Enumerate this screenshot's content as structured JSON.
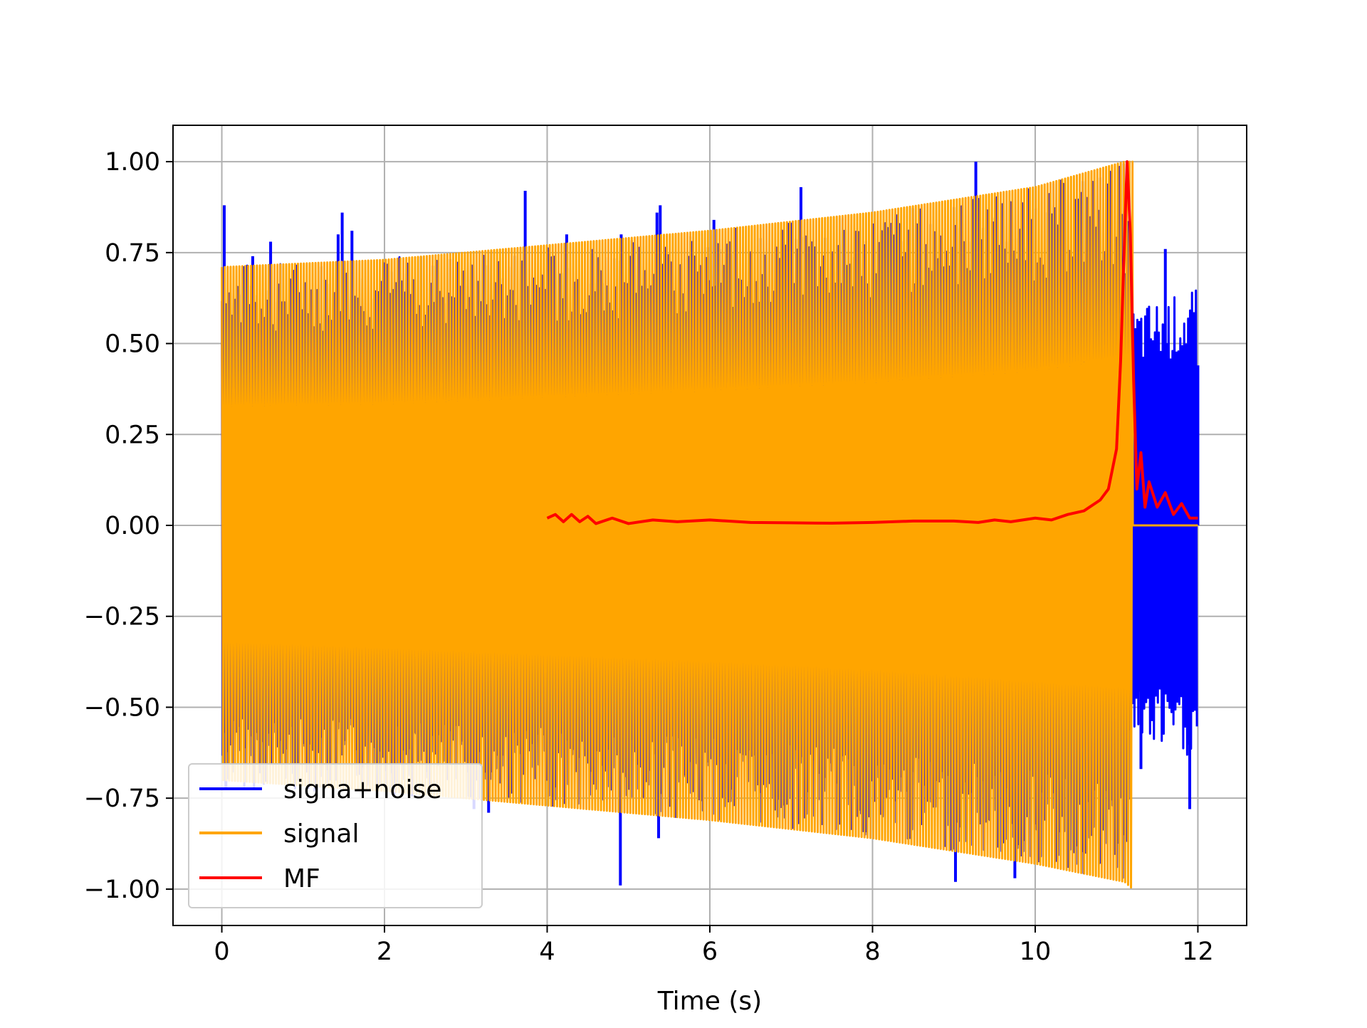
{
  "chart_data": {
    "type": "line",
    "title": "",
    "xlabel": "Time (s)",
    "ylabel": "",
    "xlim": [
      -0.6,
      12.6
    ],
    "ylim": [
      -1.1,
      1.1
    ],
    "grid": true,
    "legend_position": "lower-left",
    "x_ticks": [
      {
        "value": 0,
        "label": "0"
      },
      {
        "value": 2,
        "label": "2"
      },
      {
        "value": 4,
        "label": "4"
      },
      {
        "value": 6,
        "label": "6"
      },
      {
        "value": 8,
        "label": "8"
      },
      {
        "value": 10,
        "label": "10"
      },
      {
        "value": 12,
        "label": "12"
      }
    ],
    "y_ticks": [
      {
        "value": 1.0,
        "label": "1.00"
      },
      {
        "value": 0.75,
        "label": "0.75"
      },
      {
        "value": 0.5,
        "label": "0.50"
      },
      {
        "value": 0.25,
        "label": "0.25"
      },
      {
        "value": 0.0,
        "label": "0.00"
      },
      {
        "value": -0.25,
        "label": "−0.25"
      },
      {
        "value": -0.5,
        "label": "−0.50"
      },
      {
        "value": -0.75,
        "label": "−0.75"
      },
      {
        "value": -1.0,
        "label": "−1.00"
      }
    ],
    "series": [
      {
        "name": "signa+noise",
        "color": "#0000ff",
        "x_range": [
          0,
          12
        ],
        "envelope_upper": [
          [
            0,
            0.72
          ],
          [
            2,
            0.74
          ],
          [
            4,
            0.77
          ],
          [
            6,
            0.81
          ],
          [
            8,
            0.86
          ],
          [
            10,
            0.93
          ],
          [
            11.1,
            1.0
          ],
          [
            11.2,
            0.6
          ],
          [
            12,
            0.65
          ]
        ],
        "spikes": [
          [
            0.03,
            0.88
          ],
          [
            0.05,
            -0.72
          ],
          [
            0.38,
            0.74
          ],
          [
            0.6,
            0.78
          ],
          [
            1.43,
            0.8
          ],
          [
            1.48,
            0.86
          ],
          [
            1.6,
            0.81
          ],
          [
            3.1,
            -0.78
          ],
          [
            3.28,
            -0.79
          ],
          [
            3.73,
            0.92
          ],
          [
            4.24,
            0.8
          ],
          [
            4.9,
            -0.99
          ],
          [
            4.91,
            0.8
          ],
          [
            5.35,
            0.86
          ],
          [
            5.37,
            -0.86
          ],
          [
            5.39,
            0.88
          ],
          [
            6.05,
            0.84
          ],
          [
            7.12,
            0.93
          ],
          [
            9.02,
            -0.98
          ],
          [
            9.27,
            1.0
          ],
          [
            9.3,
            0.9
          ],
          [
            9.75,
            -0.97
          ],
          [
            11.3,
            -0.67
          ],
          [
            11.6,
            0.76
          ],
          [
            11.9,
            -0.78
          ],
          [
            12.0,
            0.44
          ]
        ]
      },
      {
        "name": "signal",
        "color": "#ffa500",
        "x_range": [
          0,
          11.2
        ],
        "envelope_upper": [
          [
            0,
            0.71
          ],
          [
            2,
            0.73
          ],
          [
            4,
            0.77
          ],
          [
            6,
            0.81
          ],
          [
            8,
            0.86
          ],
          [
            10,
            0.93
          ],
          [
            11.1,
            1.0
          ],
          [
            11.2,
            1.0
          ]
        ],
        "envelope_lower": [
          [
            0,
            -0.7
          ],
          [
            2,
            -0.73
          ],
          [
            4,
            -0.77
          ],
          [
            6,
            -0.81
          ],
          [
            8,
            -0.86
          ],
          [
            10,
            -0.93
          ],
          [
            11.1,
            -0.98
          ],
          [
            11.2,
            -1.0
          ]
        ],
        "after_end_value": 0.0
      },
      {
        "name": "MF",
        "color": "#ff0000",
        "points": [
          [
            4.0,
            0.02
          ],
          [
            4.1,
            0.03
          ],
          [
            4.2,
            0.01
          ],
          [
            4.3,
            0.03
          ],
          [
            4.4,
            0.01
          ],
          [
            4.5,
            0.025
          ],
          [
            4.6,
            0.005
          ],
          [
            4.8,
            0.02
          ],
          [
            5.0,
            0.005
          ],
          [
            5.3,
            0.015
          ],
          [
            5.6,
            0.01
          ],
          [
            6.0,
            0.015
          ],
          [
            6.5,
            0.008
          ],
          [
            7.0,
            0.007
          ],
          [
            7.5,
            0.006
          ],
          [
            8.0,
            0.008
          ],
          [
            8.5,
            0.012
          ],
          [
            9.0,
            0.012
          ],
          [
            9.3,
            0.008
          ],
          [
            9.5,
            0.015
          ],
          [
            9.7,
            0.01
          ],
          [
            10.0,
            0.02
          ],
          [
            10.2,
            0.015
          ],
          [
            10.4,
            0.03
          ],
          [
            10.6,
            0.04
          ],
          [
            10.8,
            0.07
          ],
          [
            10.9,
            0.1
          ],
          [
            11.0,
            0.21
          ],
          [
            11.05,
            0.45
          ],
          [
            11.1,
            0.8
          ],
          [
            11.13,
            1.0
          ],
          [
            11.17,
            0.8
          ],
          [
            11.21,
            0.4
          ],
          [
            11.25,
            0.1
          ],
          [
            11.3,
            0.2
          ],
          [
            11.35,
            0.05
          ],
          [
            11.4,
            0.12
          ],
          [
            11.5,
            0.05
          ],
          [
            11.6,
            0.09
          ],
          [
            11.7,
            0.03
          ],
          [
            11.8,
            0.06
          ],
          [
            11.9,
            0.02
          ],
          [
            12.0,
            0.02
          ]
        ]
      }
    ]
  }
}
